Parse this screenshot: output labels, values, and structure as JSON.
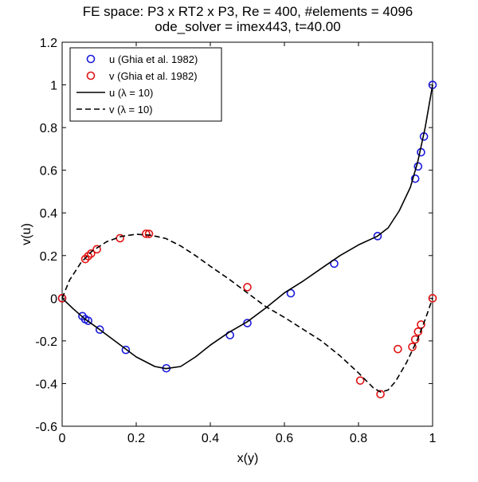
{
  "chart_data": {
    "type": "line",
    "title": "FE space: P3 x RT2 x P3, Re = 400,  #elements = 4096",
    "subtitle": "ode_solver = imex443, t=40.00",
    "xlabel": "x(y)",
    "ylabel": "v(u)",
    "xlim": [
      0,
      1
    ],
    "ylim": [
      -0.6,
      1.2
    ],
    "x_ticks": [
      0,
      0.2,
      0.4,
      0.6,
      0.8,
      1
    ],
    "x_tick_labels": [
      "0",
      "0.2",
      "0.4",
      "0.6",
      "0.8",
      "1"
    ],
    "y_ticks": [
      -0.6,
      -0.4,
      -0.2,
      0,
      0.2,
      0.4,
      0.6,
      0.8,
      1,
      1.2
    ],
    "y_tick_labels": [
      "-0.6",
      "-0.4",
      "-0.2",
      "0",
      "0.2",
      "0.4",
      "0.6",
      "0.8",
      "1",
      "1.2"
    ],
    "legend_position": "top-left",
    "series": [
      {
        "name": "u (Ghia et al. 1982)",
        "kind": "markers",
        "color": "#1a1adb",
        "x": [
          0,
          0.0547,
          0.0625,
          0.0703,
          0.1016,
          0.1719,
          0.2813,
          0.4531,
          0.5,
          0.6172,
          0.7344,
          0.8516,
          0.9531,
          0.9609,
          0.9688,
          0.9766,
          1
        ],
        "y": [
          0,
          -0.0839,
          -0.0986,
          -0.1058,
          -0.1471,
          -0.2423,
          -0.3283,
          -0.173,
          -0.1165,
          0.0233,
          0.1622,
          0.2912,
          0.5604,
          0.6178,
          0.6843,
          0.758,
          1
        ]
      },
      {
        "name": "v (Ghia et al. 1982)",
        "kind": "markers",
        "color": "#e01414",
        "x": [
          0,
          0.0625,
          0.0703,
          0.0781,
          0.0938,
          0.1563,
          0.2266,
          0.2344,
          0.5,
          0.8047,
          0.8594,
          0.9063,
          0.9453,
          0.9531,
          0.9609,
          0.9688,
          1
        ],
        "y": [
          0,
          0.1836,
          0.1971,
          0.2092,
          0.2297,
          0.2812,
          0.302,
          0.3017,
          0.0519,
          -0.3859,
          -0.4499,
          -0.2383,
          -0.2281,
          -0.1931,
          -0.1566,
          -0.1234,
          0
        ]
      },
      {
        "name": "u (λ = 10)",
        "kind": "solid",
        "color": "#000000",
        "x": [
          0,
          0.03,
          0.06,
          0.1,
          0.15,
          0.2,
          0.25,
          0.28,
          0.32,
          0.36,
          0.4,
          0.45,
          0.5,
          0.55,
          0.6,
          0.65,
          0.7,
          0.75,
          0.8,
          0.85,
          0.88,
          0.91,
          0.94,
          0.96,
          0.98,
          1
        ],
        "y": [
          0,
          -0.05,
          -0.095,
          -0.145,
          -0.21,
          -0.275,
          -0.32,
          -0.33,
          -0.32,
          -0.275,
          -0.22,
          -0.16,
          -0.11,
          -0.045,
          0.025,
          0.08,
          0.14,
          0.2,
          0.25,
          0.29,
          0.33,
          0.41,
          0.52,
          0.64,
          0.8,
          1
        ]
      },
      {
        "name": "v (λ = 10)",
        "kind": "dashed",
        "color": "#000000",
        "x": [
          0,
          0.02,
          0.05,
          0.08,
          0.12,
          0.16,
          0.2,
          0.24,
          0.28,
          0.32,
          0.36,
          0.4,
          0.45,
          0.5,
          0.55,
          0.6,
          0.65,
          0.7,
          0.75,
          0.8,
          0.84,
          0.86,
          0.88,
          0.9,
          0.93,
          0.96,
          0.98,
          1
        ],
        "y": [
          0,
          0.085,
          0.165,
          0.22,
          0.265,
          0.29,
          0.3,
          0.295,
          0.28,
          0.245,
          0.2,
          0.15,
          0.09,
          0.025,
          -0.04,
          -0.09,
          -0.145,
          -0.2,
          -0.27,
          -0.35,
          -0.42,
          -0.44,
          -0.43,
          -0.39,
          -0.3,
          -0.19,
          -0.1,
          0
        ]
      }
    ]
  }
}
